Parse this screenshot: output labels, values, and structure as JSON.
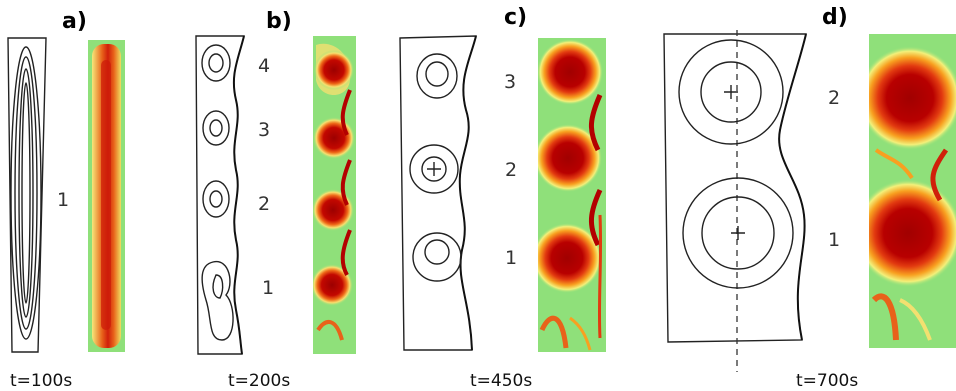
{
  "panels": [
    {
      "label": "a)",
      "time": "t=100s",
      "vortices": [
        "1"
      ]
    },
    {
      "label": "b)",
      "time": "t=200s",
      "vortices": [
        "4",
        "3",
        "2",
        "1"
      ]
    },
    {
      "label": "c)",
      "time": "t=450s",
      "vortices": [
        "3",
        "2",
        "1"
      ]
    },
    {
      "label": "d)",
      "time": "t=700s",
      "vortices": [
        "2",
        "1"
      ]
    }
  ],
  "colors": {
    "field_background": "#8fe07a",
    "field_low": "#f3f07a",
    "field_mid": "#f27a1c",
    "field_core": "#a10000",
    "contour_line": "#222222"
  }
}
